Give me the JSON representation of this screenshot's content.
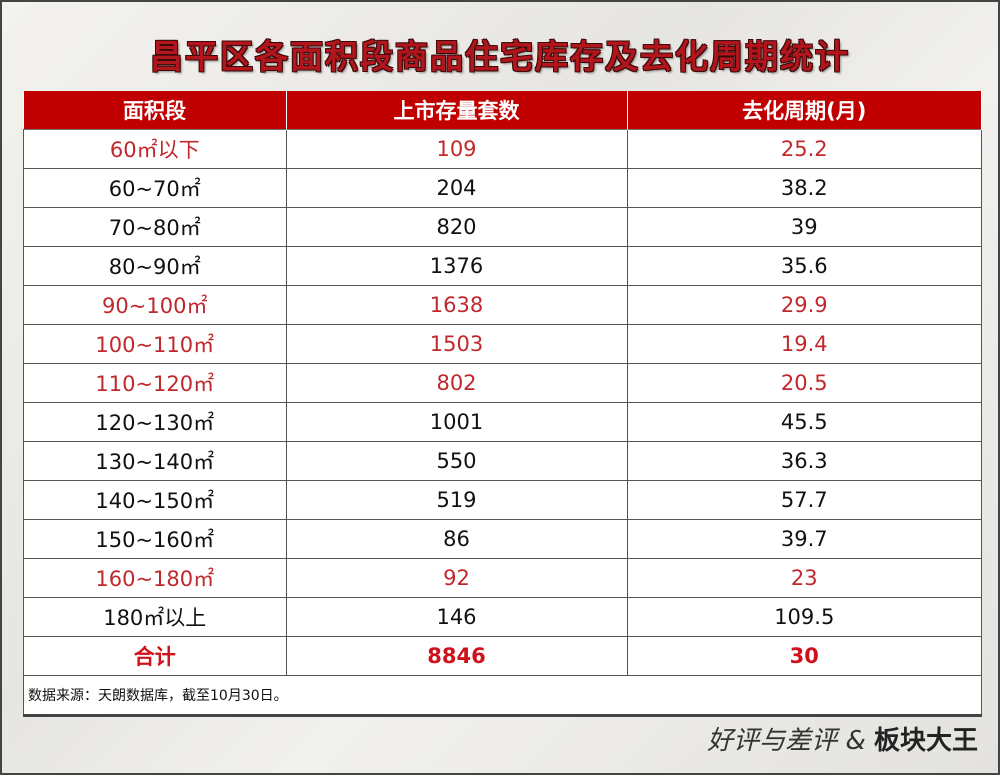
{
  "title": "昌平区各面积段商品住宅库存及去化周期统计",
  "table": {
    "headers": [
      "面积段",
      "上市存量套数",
      "去化周期(月)"
    ],
    "rows": [
      {
        "area": "60㎡以下",
        "stock": "109",
        "cycle": "25.2",
        "highlight": true
      },
      {
        "area": "60~70㎡",
        "stock": "204",
        "cycle": "38.2",
        "highlight": false
      },
      {
        "area": "70~80㎡",
        "stock": "820",
        "cycle": "39",
        "highlight": false
      },
      {
        "area": "80~90㎡",
        "stock": "1376",
        "cycle": "35.6",
        "highlight": false
      },
      {
        "area": "90~100㎡",
        "stock": "1638",
        "cycle": "29.9",
        "highlight": true
      },
      {
        "area": "100~110㎡",
        "stock": "1503",
        "cycle": "19.4",
        "highlight": true
      },
      {
        "area": "110~120㎡",
        "stock": "802",
        "cycle": "20.5",
        "highlight": true
      },
      {
        "area": "120~130㎡",
        "stock": "1001",
        "cycle": "45.5",
        "highlight": false
      },
      {
        "area": "130~140㎡",
        "stock": "550",
        "cycle": "36.3",
        "highlight": false
      },
      {
        "area": "140~150㎡",
        "stock": "519",
        "cycle": "57.7",
        "highlight": false
      },
      {
        "area": "150~160㎡",
        "stock": "86",
        "cycle": "39.7",
        "highlight": false
      },
      {
        "area": "160~180㎡",
        "stock": "92",
        "cycle": "23",
        "highlight": true
      },
      {
        "area": "180㎡以上",
        "stock": "146",
        "cycle": "109.5",
        "highlight": false
      }
    ],
    "total": {
      "area": "合计",
      "stock": "8846",
      "cycle": "30"
    },
    "note": "数据来源：天朗数据库，截至10月30日。"
  },
  "logo": {
    "part1": "好评与差评",
    "amp": "&",
    "part2": "板块大王"
  },
  "colors": {
    "header_bg": "#c00000",
    "highlight_text": "#c0282d",
    "title": "#b3151c"
  }
}
